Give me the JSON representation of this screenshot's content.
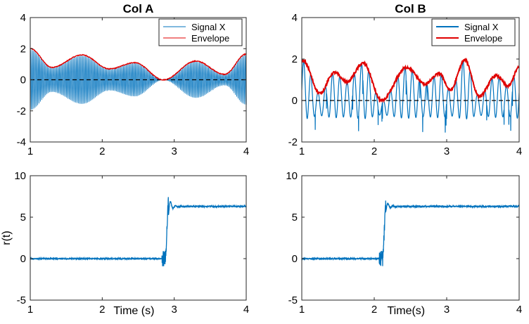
{
  "colors": {
    "signal": "#0072BD",
    "envelope": "#E00000",
    "zero": "#000000"
  },
  "chart_data": [
    {
      "type": "line",
      "title": "Col A",
      "xlabel": "",
      "ylabel": "",
      "xlim": [
        1,
        4
      ],
      "ylim": [
        -4,
        4
      ],
      "xticks": [
        1,
        2,
        3,
        4
      ],
      "yticks": [
        -4,
        -2,
        0,
        2,
        4
      ],
      "legend": {
        "position": "top-right",
        "entries": [
          "Signal X",
          "Envelope"
        ]
      },
      "envelope_model": {
        "kind": "a",
        "peaks": [
          [
            1.0,
            2.0
          ],
          [
            1.72,
            1.6
          ],
          [
            2.45,
            1.1
          ],
          [
            3.3,
            1.2
          ],
          [
            4.0,
            1.65
          ]
        ],
        "troughs": [
          [
            1.3,
            0.8
          ],
          [
            2.1,
            0.7
          ],
          [
            2.85,
            0.0
          ],
          [
            3.7,
            0.35
          ]
        ]
      },
      "carrier_hz": 55,
      "reference_line_y": 0
    },
    {
      "type": "line",
      "title": "Col B",
      "xlabel": "",
      "ylabel": "",
      "xlim": [
        1,
        4
      ],
      "ylim": [
        -2,
        4
      ],
      "xticks": [
        1,
        2,
        3,
        4
      ],
      "yticks": [
        -2,
        0,
        2,
        4
      ],
      "legend": {
        "position": "top-right",
        "entries": [
          "Signal X",
          "Envelope"
        ]
      },
      "envelope_model": {
        "kind": "b",
        "peaks": [
          [
            1.02,
            1.9
          ],
          [
            1.45,
            1.35
          ],
          [
            1.85,
            1.8
          ],
          [
            2.45,
            1.6
          ],
          [
            2.9,
            1.3
          ],
          [
            3.25,
            1.95
          ],
          [
            3.68,
            1.2
          ],
          [
            4.0,
            1.6
          ]
        ],
        "troughs": [
          [
            1.25,
            0.35
          ],
          [
            1.62,
            0.9
          ],
          [
            2.1,
            0.0
          ],
          [
            2.7,
            0.8
          ],
          [
            3.05,
            0.5
          ],
          [
            3.45,
            0.2
          ],
          [
            3.85,
            0.7
          ]
        ]
      },
      "carrier_hz": 10,
      "reference_line_y": 0
    },
    {
      "type": "line",
      "title": "",
      "xlabel": "Time (s)",
      "ylabel": "r(t)",
      "xlim": [
        1,
        4
      ],
      "ylim": [
        -5,
        10
      ],
      "xticks": [
        1,
        2,
        3,
        4
      ],
      "yticks": [
        -5,
        0,
        5,
        10
      ],
      "step": {
        "before": 0,
        "after": 6.3,
        "t_step": 2.88,
        "overshoot": 7.5
      }
    },
    {
      "type": "line",
      "title": "",
      "xlabel": "Time(s)",
      "ylabel": "",
      "xlim": [
        1,
        4
      ],
      "ylim": [
        -5,
        10
      ],
      "xticks": [
        1,
        2,
        3,
        4
      ],
      "yticks": [
        -5,
        0,
        5,
        10
      ],
      "step": {
        "before": 0,
        "after": 6.3,
        "t_step": 2.12,
        "overshoot": 7.0
      }
    }
  ]
}
